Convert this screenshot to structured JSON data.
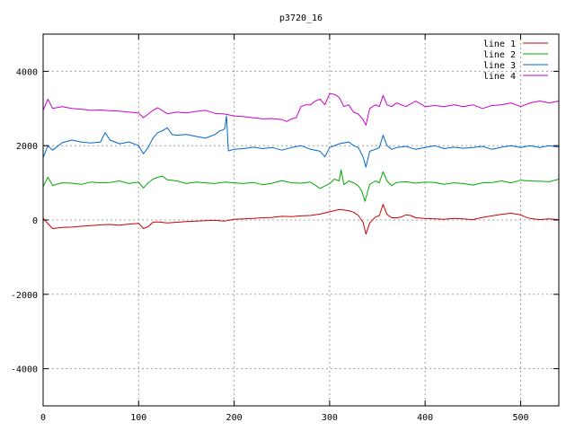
{
  "chart_data": {
    "type": "line",
    "title": "p3720_16",
    "xlabel": "",
    "ylabel": "",
    "xlim": [
      0,
      540
    ],
    "ylim": [
      -5000,
      5000
    ],
    "x_ticks": [
      0,
      100,
      200,
      300,
      400,
      500
    ],
    "y_ticks": [
      -4000,
      -2000,
      0,
      2000,
      4000
    ],
    "grid": true,
    "legend_position": "top-right",
    "series": [
      {
        "name": "line 1",
        "color": "#cc0000",
        "points": [
          [
            0,
            50
          ],
          [
            5,
            -100
          ],
          [
            10,
            -230
          ],
          [
            20,
            -200
          ],
          [
            30,
            -190
          ],
          [
            40,
            -170
          ],
          [
            50,
            -150
          ],
          [
            60,
            -130
          ],
          [
            70,
            -120
          ],
          [
            80,
            -140
          ],
          [
            90,
            -110
          ],
          [
            100,
            -90
          ],
          [
            105,
            -230
          ],
          [
            110,
            -180
          ],
          [
            115,
            -60
          ],
          [
            120,
            -50
          ],
          [
            130,
            -80
          ],
          [
            140,
            -60
          ],
          [
            150,
            -40
          ],
          [
            160,
            -30
          ],
          [
            170,
            -20
          ],
          [
            180,
            -10
          ],
          [
            190,
            -30
          ],
          [
            200,
            20
          ],
          [
            210,
            30
          ],
          [
            220,
            40
          ],
          [
            230,
            60
          ],
          [
            240,
            70
          ],
          [
            250,
            100
          ],
          [
            260,
            90
          ],
          [
            270,
            110
          ],
          [
            280,
            120
          ],
          [
            290,
            160
          ],
          [
            300,
            220
          ],
          [
            310,
            280
          ],
          [
            320,
            250
          ],
          [
            325,
            210
          ],
          [
            330,
            120
          ],
          [
            335,
            -60
          ],
          [
            338,
            -380
          ],
          [
            342,
            -80
          ],
          [
            348,
            80
          ],
          [
            352,
            120
          ],
          [
            356,
            420
          ],
          [
            360,
            150
          ],
          [
            365,
            60
          ],
          [
            370,
            60
          ],
          [
            375,
            80
          ],
          [
            380,
            140
          ],
          [
            385,
            120
          ],
          [
            390,
            60
          ],
          [
            400,
            40
          ],
          [
            410,
            30
          ],
          [
            420,
            20
          ],
          [
            430,
            40
          ],
          [
            440,
            30
          ],
          [
            450,
            10
          ],
          [
            460,
            70
          ],
          [
            470,
            110
          ],
          [
            480,
            150
          ],
          [
            485,
            170
          ],
          [
            490,
            180
          ],
          [
            500,
            140
          ],
          [
            505,
            80
          ],
          [
            510,
            40
          ],
          [
            520,
            10
          ],
          [
            530,
            30
          ],
          [
            540,
            10
          ]
        ]
      },
      {
        "name": "line 2",
        "color": "#00aa00",
        "points": [
          [
            0,
            900
          ],
          [
            5,
            1150
          ],
          [
            10,
            930
          ],
          [
            20,
            1000
          ],
          [
            30,
            990
          ],
          [
            40,
            960
          ],
          [
            50,
            1020
          ],
          [
            60,
            1000
          ],
          [
            70,
            1010
          ],
          [
            80,
            1050
          ],
          [
            90,
            980
          ],
          [
            100,
            1020
          ],
          [
            105,
            860
          ],
          [
            110,
            1000
          ],
          [
            115,
            1100
          ],
          [
            120,
            1150
          ],
          [
            125,
            1180
          ],
          [
            130,
            1080
          ],
          [
            140,
            1050
          ],
          [
            150,
            980
          ],
          [
            160,
            1020
          ],
          [
            170,
            1000
          ],
          [
            180,
            980
          ],
          [
            190,
            1020
          ],
          [
            200,
            1000
          ],
          [
            210,
            980
          ],
          [
            220,
            1010
          ],
          [
            230,
            950
          ],
          [
            240,
            990
          ],
          [
            250,
            1060
          ],
          [
            260,
            1000
          ],
          [
            270,
            990
          ],
          [
            280,
            1020
          ],
          [
            290,
            850
          ],
          [
            300,
            980
          ],
          [
            305,
            1100
          ],
          [
            310,
            1050
          ],
          [
            312,
            1350
          ],
          [
            315,
            950
          ],
          [
            320,
            1050
          ],
          [
            325,
            1000
          ],
          [
            330,
            920
          ],
          [
            334,
            760
          ],
          [
            337,
            500
          ],
          [
            342,
            960
          ],
          [
            348,
            1050
          ],
          [
            352,
            1000
          ],
          [
            356,
            1300
          ],
          [
            360,
            1050
          ],
          [
            365,
            920
          ],
          [
            370,
            1010
          ],
          [
            380,
            1030
          ],
          [
            390,
            990
          ],
          [
            400,
            1020
          ],
          [
            410,
            1010
          ],
          [
            420,
            960
          ],
          [
            430,
            1000
          ],
          [
            440,
            980
          ],
          [
            450,
            940
          ],
          [
            460,
            1000
          ],
          [
            470,
            1010
          ],
          [
            480,
            1050
          ],
          [
            490,
            1000
          ],
          [
            500,
            1070
          ],
          [
            510,
            1050
          ],
          [
            520,
            1040
          ],
          [
            530,
            1030
          ],
          [
            540,
            1100
          ]
        ]
      },
      {
        "name": "line 3",
        "color": "#0066cc",
        "points": [
          [
            0,
            1680
          ],
          [
            5,
            2000
          ],
          [
            10,
            1880
          ],
          [
            20,
            2080
          ],
          [
            30,
            2150
          ],
          [
            40,
            2100
          ],
          [
            50,
            2070
          ],
          [
            60,
            2100
          ],
          [
            65,
            2350
          ],
          [
            70,
            2150
          ],
          [
            80,
            2050
          ],
          [
            90,
            2100
          ],
          [
            100,
            2000
          ],
          [
            105,
            1780
          ],
          [
            110,
            1950
          ],
          [
            115,
            2200
          ],
          [
            120,
            2350
          ],
          [
            125,
            2400
          ],
          [
            130,
            2480
          ],
          [
            135,
            2300
          ],
          [
            140,
            2280
          ],
          [
            150,
            2300
          ],
          [
            160,
            2250
          ],
          [
            170,
            2200
          ],
          [
            180,
            2300
          ],
          [
            185,
            2400
          ],
          [
            188,
            2420
          ],
          [
            190,
            2450
          ],
          [
            192,
            2800
          ],
          [
            194,
            1860
          ],
          [
            200,
            1900
          ],
          [
            210,
            1920
          ],
          [
            220,
            1960
          ],
          [
            230,
            1920
          ],
          [
            240,
            1950
          ],
          [
            250,
            1880
          ],
          [
            260,
            1950
          ],
          [
            270,
            2000
          ],
          [
            280,
            1900
          ],
          [
            290,
            1850
          ],
          [
            295,
            1700
          ],
          [
            300,
            1950
          ],
          [
            310,
            2050
          ],
          [
            320,
            2100
          ],
          [
            325,
            2000
          ],
          [
            330,
            1950
          ],
          [
            335,
            1700
          ],
          [
            338,
            1420
          ],
          [
            342,
            1850
          ],
          [
            348,
            1900
          ],
          [
            352,
            1950
          ],
          [
            356,
            2280
          ],
          [
            360,
            2000
          ],
          [
            365,
            1900
          ],
          [
            370,
            1950
          ],
          [
            380,
            1980
          ],
          [
            390,
            1900
          ],
          [
            400,
            1950
          ],
          [
            410,
            2000
          ],
          [
            420,
            1920
          ],
          [
            430,
            1960
          ],
          [
            440,
            1930
          ],
          [
            450,
            1950
          ],
          [
            460,
            1980
          ],
          [
            470,
            1900
          ],
          [
            480,
            1960
          ],
          [
            490,
            2000
          ],
          [
            500,
            1950
          ],
          [
            510,
            2000
          ],
          [
            520,
            1950
          ],
          [
            530,
            2000
          ],
          [
            540,
            1960
          ]
        ]
      },
      {
        "name": "line 4",
        "color": "#cc00cc",
        "points": [
          [
            0,
            2950
          ],
          [
            5,
            3250
          ],
          [
            10,
            3000
          ],
          [
            20,
            3050
          ],
          [
            30,
            3000
          ],
          [
            40,
            2980
          ],
          [
            50,
            2950
          ],
          [
            60,
            2960
          ],
          [
            70,
            2940
          ],
          [
            80,
            2930
          ],
          [
            90,
            2900
          ],
          [
            100,
            2880
          ],
          [
            105,
            2750
          ],
          [
            110,
            2850
          ],
          [
            115,
            2950
          ],
          [
            120,
            3020
          ],
          [
            130,
            2860
          ],
          [
            140,
            2900
          ],
          [
            150,
            2880
          ],
          [
            160,
            2920
          ],
          [
            170,
            2950
          ],
          [
            180,
            2870
          ],
          [
            190,
            2850
          ],
          [
            200,
            2800
          ],
          [
            210,
            2780
          ],
          [
            220,
            2750
          ],
          [
            230,
            2720
          ],
          [
            240,
            2730
          ],
          [
            250,
            2700
          ],
          [
            255,
            2650
          ],
          [
            260,
            2720
          ],
          [
            265,
            2750
          ],
          [
            270,
            3050
          ],
          [
            275,
            3100
          ],
          [
            280,
            3100
          ],
          [
            285,
            3200
          ],
          [
            290,
            3250
          ],
          [
            295,
            3100
          ],
          [
            300,
            3400
          ],
          [
            305,
            3380
          ],
          [
            310,
            3300
          ],
          [
            315,
            3050
          ],
          [
            320,
            3100
          ],
          [
            325,
            2900
          ],
          [
            330,
            2850
          ],
          [
            335,
            2700
          ],
          [
            338,
            2550
          ],
          [
            342,
            3000
          ],
          [
            348,
            3100
          ],
          [
            352,
            3050
          ],
          [
            356,
            3350
          ],
          [
            360,
            3100
          ],
          [
            365,
            3050
          ],
          [
            370,
            3150
          ],
          [
            380,
            3050
          ],
          [
            390,
            3200
          ],
          [
            400,
            3050
          ],
          [
            410,
            3080
          ],
          [
            420,
            3050
          ],
          [
            430,
            3100
          ],
          [
            440,
            3050
          ],
          [
            450,
            3100
          ],
          [
            460,
            3000
          ],
          [
            470,
            3080
          ],
          [
            480,
            3100
          ],
          [
            490,
            3150
          ],
          [
            500,
            3050
          ],
          [
            510,
            3150
          ],
          [
            520,
            3200
          ],
          [
            530,
            3150
          ],
          [
            540,
            3200
          ]
        ]
      }
    ]
  }
}
